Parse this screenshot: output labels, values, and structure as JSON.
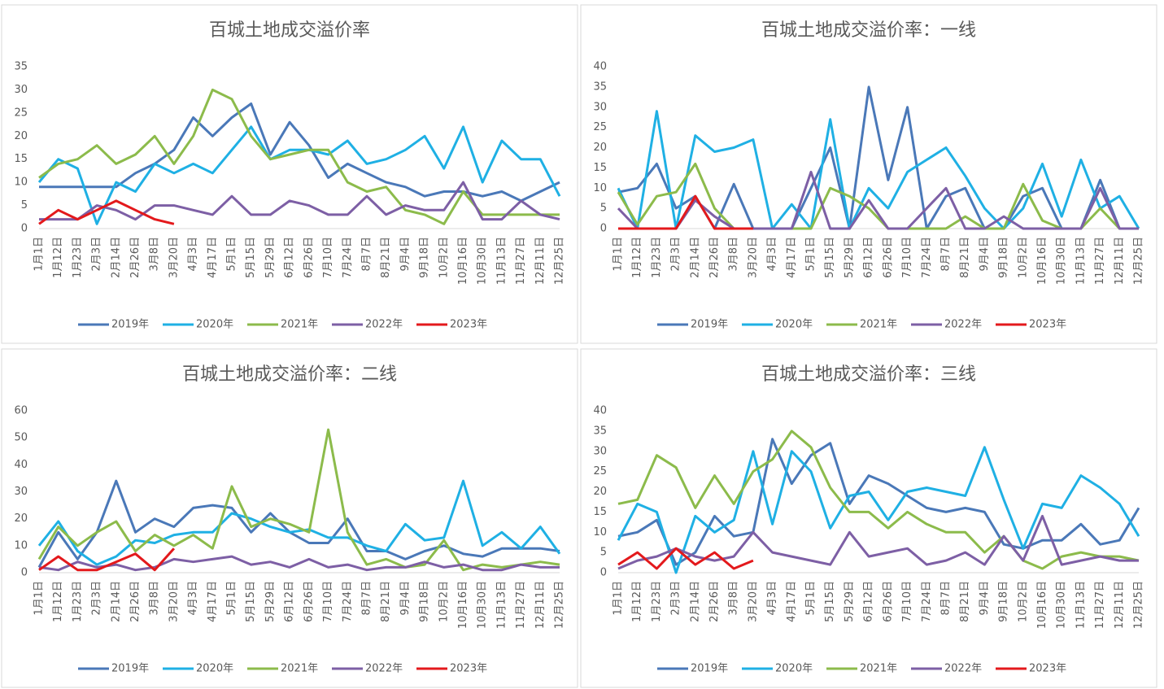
{
  "chart_data": [
    {
      "type": "line",
      "title": "百城土地成交溢价率",
      "categories": [
        "1月1日",
        "1月12日",
        "1月23日",
        "2月3日",
        "2月14日",
        "2月26日",
        "3月8日",
        "3月20日",
        "4月3日",
        "4月17日",
        "5月1日",
        "5月15日",
        "5月29日",
        "6月12日",
        "6月26日",
        "7月10日",
        "7月24日",
        "8月7日",
        "8月21日",
        "9月4日",
        "9月18日",
        "10月2日",
        "10月16日",
        "10月30日",
        "11月13日",
        "11月27日",
        "12月11日",
        "12月25日"
      ],
      "ylim": [
        0,
        35
      ],
      "yticks": [
        0,
        5,
        10,
        15,
        20,
        25,
        30,
        35
      ],
      "grid": false,
      "legend": "bottom",
      "series": [
        {
          "name": "2019年",
          "color": "#4a78b8",
          "values": [
            9,
            9,
            9,
            9,
            9,
            12,
            14,
            17,
            24,
            20,
            24,
            27,
            16,
            23,
            18,
            11,
            14,
            12,
            10,
            9,
            7,
            8,
            8,
            7,
            8,
            6,
            8,
            10
          ]
        },
        {
          "name": "2020年",
          "color": "#1fb0e4",
          "values": [
            10,
            15,
            13,
            1,
            10,
            8,
            14,
            12,
            14,
            12,
            17,
            22,
            15,
            17,
            17,
            16,
            19,
            14,
            15,
            17,
            20,
            13,
            22,
            10,
            19,
            15,
            15,
            7
          ]
        },
        {
          "name": "2021年",
          "color": "#8cbb4b",
          "values": [
            11,
            14,
            15,
            18,
            14,
            16,
            20,
            14,
            20,
            30,
            28,
            20,
            15,
            16,
            17,
            17,
            10,
            8,
            9,
            4,
            3,
            1,
            8,
            3,
            3,
            3,
            3,
            3
          ]
        },
        {
          "name": "2022年",
          "color": "#7d5fa5",
          "values": [
            2,
            2,
            2,
            5,
            4,
            2,
            5,
            5,
            4,
            3,
            7,
            3,
            3,
            6,
            5,
            3,
            3,
            7,
            3,
            5,
            4,
            4,
            10,
            2,
            2,
            6,
            3,
            2
          ]
        },
        {
          "name": "2023年",
          "color": "#e3191c",
          "values": [
            1,
            4,
            2,
            4,
            6,
            4,
            2,
            1,
            null,
            null,
            null,
            null,
            null,
            null,
            null,
            null,
            null,
            null,
            null,
            null,
            null,
            null,
            null,
            null,
            null,
            null,
            null,
            null
          ]
        }
      ]
    },
    {
      "type": "line",
      "title": "百城土地成交溢价率：一线",
      "categories": [
        "1月1日",
        "1月12日",
        "1月23日",
        "2月3日",
        "2月14日",
        "2月26日",
        "3月8日",
        "3月20日",
        "4月3日",
        "4月17日",
        "5月1日",
        "5月15日",
        "5月29日",
        "6月12日",
        "6月26日",
        "7月10日",
        "7月24日",
        "8月7日",
        "8月21日",
        "9月4日",
        "9月18日",
        "10月2日",
        "10月16日",
        "10月30日",
        "11月13日",
        "11月27日",
        "12月11日",
        "12月25日"
      ],
      "ylim": [
        0,
        40
      ],
      "yticks": [
        0,
        5,
        10,
        15,
        20,
        25,
        30,
        35,
        40
      ],
      "grid": false,
      "legend": "bottom",
      "series": [
        {
          "name": "2019年",
          "color": "#4a78b8",
          "values": [
            9,
            10,
            16,
            5,
            8,
            0,
            11,
            0,
            0,
            0,
            10,
            20,
            0,
            35,
            12,
            30,
            0,
            8,
            10,
            0,
            0,
            8,
            10,
            0,
            0,
            12,
            0,
            0
          ]
        },
        {
          "name": "2020年",
          "color": "#1fb0e4",
          "values": [
            10,
            0,
            29,
            0,
            23,
            19,
            20,
            22,
            0,
            6,
            0,
            27,
            0,
            10,
            5,
            14,
            17,
            20,
            13,
            5,
            0,
            5,
            16,
            3,
            17,
            5,
            8,
            0
          ]
        },
        {
          "name": "2021年",
          "color": "#8cbb4b",
          "values": [
            9,
            1,
            8,
            9,
            16,
            5,
            0,
            0,
            0,
            0,
            0,
            10,
            8,
            5,
            0,
            0,
            0,
            0,
            3,
            0,
            0,
            11,
            2,
            0,
            0,
            5,
            0,
            0
          ]
        },
        {
          "name": "2022年",
          "color": "#7d5fa5",
          "values": [
            5,
            0,
            0,
            0,
            7,
            3,
            0,
            0,
            0,
            0,
            14,
            0,
            0,
            7,
            0,
            0,
            5,
            10,
            0,
            0,
            3,
            0,
            0,
            0,
            0,
            10,
            0,
            0
          ]
        },
        {
          "name": "2023年",
          "color": "#e3191c",
          "values": [
            0,
            0,
            0,
            0,
            8,
            0,
            0,
            0,
            null,
            null,
            null,
            null,
            null,
            null,
            null,
            null,
            null,
            null,
            null,
            null,
            null,
            null,
            null,
            null,
            null,
            null,
            null,
            null
          ]
        }
      ]
    },
    {
      "type": "line",
      "title": "百城土地成交溢价率：二线",
      "categories": [
        "1月1日",
        "1月12日",
        "1月23日",
        "2月3日",
        "2月14日",
        "2月26日",
        "3月8日",
        "3月20日",
        "4月3日",
        "4月17日",
        "5月1日",
        "5月15日",
        "5月29日",
        "6月12日",
        "6月26日",
        "7月10日",
        "7月24日",
        "8月7日",
        "8月21日",
        "9月4日",
        "9月18日",
        "10月2日",
        "10月16日",
        "10月30日",
        "11月13日",
        "11月27日",
        "12月11日",
        "12月25日"
      ],
      "ylim": [
        0,
        60
      ],
      "yticks": [
        0,
        10,
        20,
        30,
        40,
        50,
        60
      ],
      "grid": false,
      "legend": "bottom",
      "series": [
        {
          "name": "2019年",
          "color": "#4a78b8",
          "values": [
            2,
            15,
            5,
            15,
            34,
            15,
            20,
            17,
            24,
            25,
            24,
            15,
            22,
            15,
            11,
            11,
            20,
            8,
            8,
            5,
            8,
            10,
            7,
            6,
            9,
            9,
            9,
            8
          ]
        },
        {
          "name": "2020年",
          "color": "#1fb0e4",
          "values": [
            10,
            19,
            8,
            3,
            6,
            12,
            11,
            14,
            15,
            15,
            22,
            20,
            17,
            15,
            16,
            13,
            13,
            10,
            8,
            18,
            12,
            13,
            34,
            10,
            15,
            9,
            17,
            7
          ]
        },
        {
          "name": "2021年",
          "color": "#8cbb4b",
          "values": [
            5,
            17,
            10,
            15,
            19,
            8,
            14,
            10,
            14,
            9,
            32,
            17,
            20,
            18,
            15,
            53,
            15,
            3,
            5,
            2,
            3,
            12,
            1,
            3,
            2,
            3,
            4,
            3
          ]
        },
        {
          "name": "2022年",
          "color": "#7d5fa5",
          "values": [
            2,
            1,
            4,
            2,
            3,
            1,
            2,
            5,
            4,
            5,
            6,
            3,
            4,
            2,
            5,
            2,
            3,
            1,
            2,
            2,
            4,
            2,
            3,
            1,
            1,
            3,
            2,
            2
          ]
        },
        {
          "name": "2023年",
          "color": "#e3191c",
          "values": [
            1,
            6,
            1,
            1,
            4,
            7,
            1,
            9,
            null,
            null,
            null,
            null,
            null,
            null,
            null,
            null,
            null,
            null,
            null,
            null,
            null,
            null,
            null,
            null,
            null,
            null,
            null,
            null
          ]
        }
      ]
    },
    {
      "type": "line",
      "title": "百城土地成交溢价率：三线",
      "categories": [
        "1月1日",
        "1月12日",
        "1月23日",
        "2月3日",
        "2月14日",
        "2月26日",
        "3月8日",
        "3月20日",
        "4月3日",
        "4月17日",
        "5月1日",
        "5月15日",
        "5月29日",
        "6月12日",
        "6月26日",
        "7月10日",
        "7月24日",
        "8月7日",
        "8月21日",
        "9月4日",
        "9月18日",
        "10月2日",
        "10月16日",
        "10月30日",
        "11月13日",
        "11月27日",
        "12月11日",
        "12月25日"
      ],
      "ylim": [
        0,
        40
      ],
      "yticks": [
        0,
        5,
        10,
        15,
        20,
        25,
        30,
        35,
        40
      ],
      "grid": false,
      "legend": "bottom",
      "series": [
        {
          "name": "2019年",
          "color": "#4a78b8",
          "values": [
            9,
            10,
            13,
            2,
            5,
            14,
            9,
            10,
            33,
            22,
            29,
            32,
            17,
            24,
            22,
            19,
            16,
            15,
            16,
            15,
            7,
            6,
            8,
            8,
            12,
            7,
            8,
            16
          ]
        },
        {
          "name": "2020年",
          "color": "#1fb0e4",
          "values": [
            8,
            17,
            15,
            0,
            14,
            10,
            13,
            30,
            12,
            30,
            25,
            11,
            19,
            20,
            13,
            20,
            21,
            20,
            19,
            31,
            18,
            6,
            17,
            16,
            24,
            21,
            17,
            9
          ]
        },
        {
          "name": "2021年",
          "color": "#8cbb4b",
          "values": [
            17,
            18,
            29,
            26,
            16,
            24,
            17,
            25,
            28,
            35,
            31,
            21,
            15,
            15,
            11,
            15,
            12,
            10,
            10,
            5,
            9,
            3,
            1,
            4,
            5,
            4,
            4,
            3
          ]
        },
        {
          "name": "2022年",
          "color": "#7d5fa5",
          "values": [
            1,
            3,
            4,
            6,
            4,
            3,
            4,
            10,
            5,
            4,
            3,
            2,
            10,
            4,
            5,
            6,
            2,
            3,
            5,
            2,
            9,
            3,
            14,
            2,
            3,
            4,
            3,
            3
          ]
        },
        {
          "name": "2023年",
          "color": "#e3191c",
          "values": [
            2,
            5,
            1,
            6,
            2,
            5,
            1,
            3,
            null,
            null,
            null,
            null,
            null,
            null,
            null,
            null,
            null,
            null,
            null,
            null,
            null,
            null,
            null,
            null,
            null,
            null,
            null,
            null
          ]
        }
      ]
    }
  ]
}
